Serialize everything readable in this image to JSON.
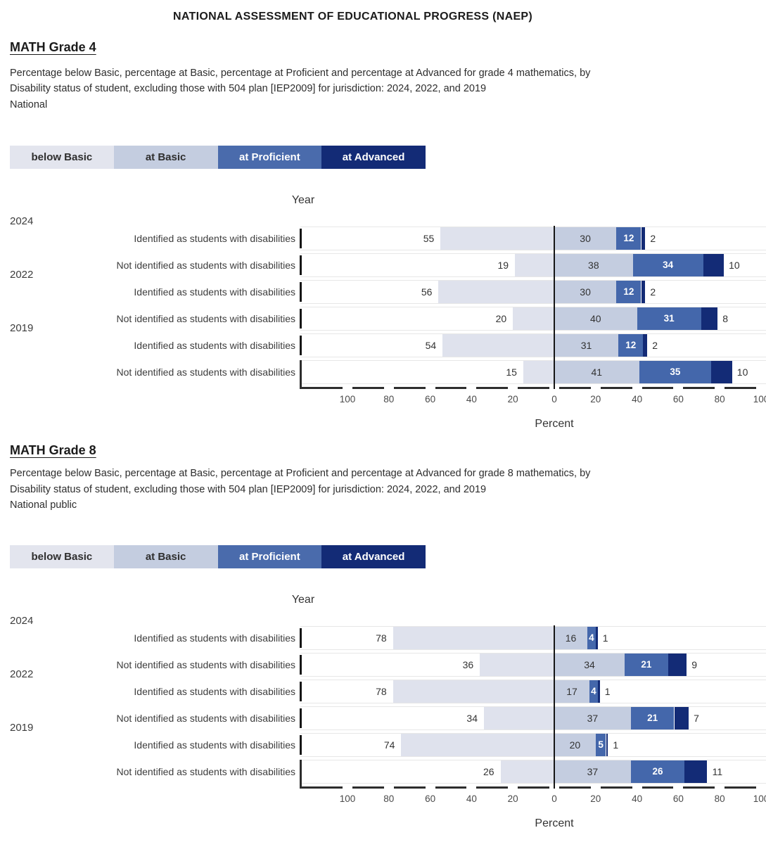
{
  "page_title": "NATIONAL ASSESSMENT OF EDUCATIONAL PROGRESS (NAEP)",
  "colors": {
    "below_basic": "#dfe2ed",
    "at_basic": "#c4cde0",
    "at_proficient": "#4467ab",
    "at_advanced": "#132b76",
    "axis": "#2d2d2d",
    "zero_line": "#161616"
  },
  "legend": {
    "items": [
      {
        "label": "below Basic",
        "color": "#e3e5ee",
        "text_color": "#2f2f2f"
      },
      {
        "label": "at Basic",
        "color": "#c4cde0",
        "text_color": "#2f2f2f"
      },
      {
        "label": "at Proficient",
        "color": "#4a6bac",
        "text_color": "#ffffff"
      },
      {
        "label": "at Advanced",
        "color": "#132b76",
        "text_color": "#ffffff"
      }
    ]
  },
  "sections": [
    {
      "heading": "MATH Grade 4",
      "description_lines": [
        "Percentage below Basic, percentage at Basic, percentage at Proficient and percentage at Advanced for grade 4 mathematics, by",
        "Disability status of student, excluding those with 504 plan [IEP2009] for jurisdiction: 2024, 2022, and 2019",
        "National"
      ]
    },
    {
      "heading": "MATH Grade 8",
      "description_lines": [
        "Percentage below Basic, percentage at Basic, percentage at Proficient and percentage at Advanced for grade 8 mathematics, by",
        "Disability status of student, excluding those with 504 plan [IEP2009] for jurisdiction: 2024, 2022, and 2019",
        "National public"
      ]
    }
  ],
  "chart_data": [
    {
      "type": "bar",
      "title": "MATH Grade 4",
      "stacking": "diverging — below Basic plotted left of zero; at Basic, at Proficient, at Advanced stacked right of zero",
      "series_labels": [
        "below Basic",
        "at Basic",
        "at Proficient",
        "at Advanced"
      ],
      "axis": {
        "group_label": "Year",
        "xlabel": "Percent",
        "xlim": [
          -100,
          100
        ],
        "tick_labels": [
          "100",
          "80",
          "60",
          "40",
          "20",
          "0",
          "20",
          "40",
          "60",
          "80",
          "100"
        ],
        "grid": false
      },
      "groups": [
        {
          "year": "2024",
          "rows": [
            {
              "label": "Identified as students with disabilities",
              "values": [
                55,
                30,
                12,
                2
              ]
            },
            {
              "label": "Not identified as students with disabilities",
              "values": [
                19,
                38,
                34,
                10
              ]
            }
          ]
        },
        {
          "year": "2022",
          "rows": [
            {
              "label": "Identified as students with disabilities",
              "values": [
                56,
                30,
                12,
                2
              ]
            },
            {
              "label": "Not identified as students with disabilities",
              "values": [
                20,
                40,
                31,
                8
              ]
            }
          ]
        },
        {
          "year": "2019",
          "rows": [
            {
              "label": "Identified as students with disabilities",
              "values": [
                54,
                31,
                12,
                2
              ]
            },
            {
              "label": "Not identified as students with disabilities",
              "values": [
                15,
                41,
                35,
                10
              ]
            }
          ]
        }
      ]
    },
    {
      "type": "bar",
      "title": "MATH Grade 8",
      "stacking": "diverging — below Basic plotted left of zero; at Basic, at Proficient, at Advanced stacked right of zero",
      "series_labels": [
        "below Basic",
        "at Basic",
        "at Proficient",
        "at Advanced"
      ],
      "axis": {
        "group_label": "Year",
        "xlabel": "Percent",
        "xlim": [
          -100,
          100
        ],
        "tick_labels": [
          "100",
          "80",
          "60",
          "40",
          "20",
          "0",
          "20",
          "40",
          "60",
          "80",
          "100"
        ],
        "grid": false
      },
      "groups": [
        {
          "year": "2024",
          "rows": [
            {
              "label": "Identified as students with disabilities",
              "values": [
                78,
                16,
                4,
                1
              ]
            },
            {
              "label": "Not identified as students with disabilities",
              "values": [
                36,
                34,
                21,
                9
              ]
            }
          ]
        },
        {
          "year": "2022",
          "rows": [
            {
              "label": "Identified as students with disabilities",
              "values": [
                78,
                17,
                4,
                1
              ]
            },
            {
              "label": "Not identified as students with disabilities",
              "values": [
                34,
                37,
                21,
                7
              ]
            }
          ]
        },
        {
          "year": "2019",
          "rows": [
            {
              "label": "Identified as students with disabilities",
              "values": [
                74,
                20,
                5,
                1
              ]
            },
            {
              "label": "Not identified as students with disabilities",
              "values": [
                26,
                37,
                26,
                11
              ]
            }
          ]
        }
      ]
    }
  ]
}
